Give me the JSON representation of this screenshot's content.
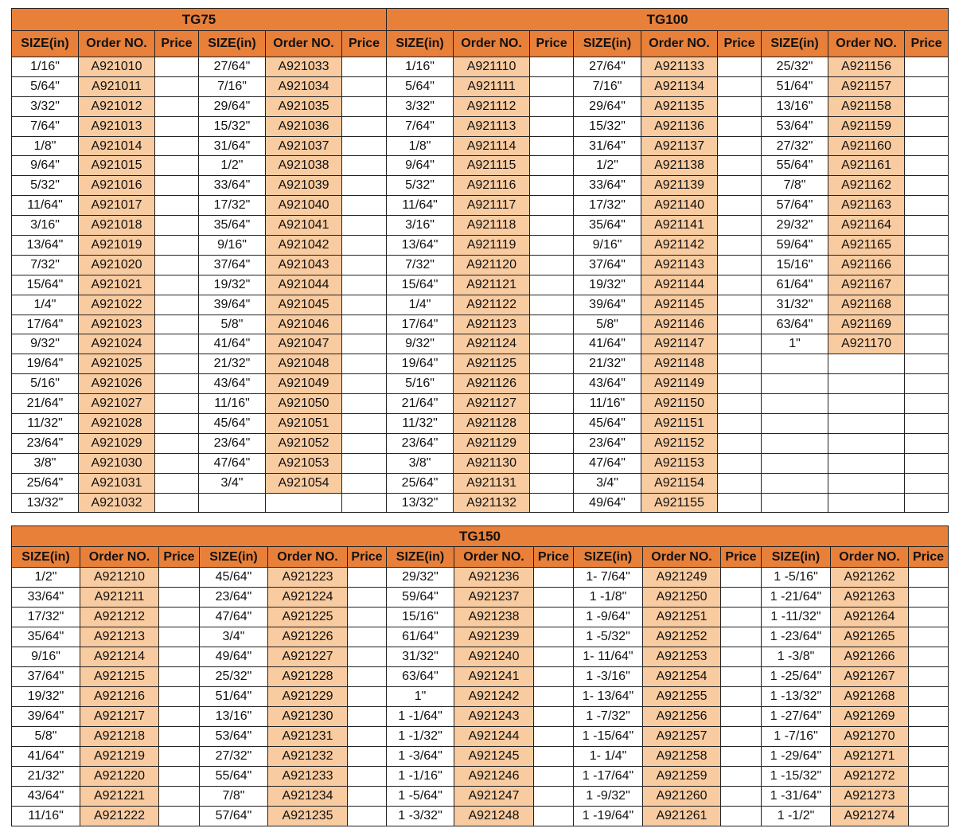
{
  "headers": {
    "size": "SIZE(in)",
    "order": "Order NO.",
    "price": "Price"
  },
  "colors": {
    "header": "#E8803A",
    "order_cell": "#F8CBA0"
  },
  "tg75": {
    "title": "TG75",
    "groups": [
      {
        "rows": [
          [
            "1/16\"",
            "A921010"
          ],
          [
            "5/64\"",
            "A921011"
          ],
          [
            "3/32\"",
            "A921012"
          ],
          [
            "7/64\"",
            "A921013"
          ],
          [
            "1/8\"",
            "A921014"
          ],
          [
            "9/64\"",
            "A921015"
          ],
          [
            "5/32\"",
            "A921016"
          ],
          [
            "11/64\"",
            "A921017"
          ],
          [
            "3/16\"",
            "A921018"
          ],
          [
            "13/64\"",
            "A921019"
          ],
          [
            "7/32\"",
            "A921020"
          ],
          [
            "15/64\"",
            "A921021"
          ],
          [
            "1/4\"",
            "A921022"
          ],
          [
            "17/64\"",
            "A921023"
          ],
          [
            "9/32\"",
            "A921024"
          ],
          [
            "19/64\"",
            "A921025"
          ],
          [
            "5/16\"",
            "A921026"
          ],
          [
            "21/64\"",
            "A921027"
          ],
          [
            "11/32\"",
            "A921028"
          ],
          [
            "23/64\"",
            "A921029"
          ],
          [
            "3/8\"",
            "A921030"
          ],
          [
            "25/64\"",
            "A921031"
          ],
          [
            "13/32\"",
            "A921032"
          ]
        ]
      },
      {
        "rows": [
          [
            "27/64\"",
            "A921033"
          ],
          [
            "7/16\"",
            "A921034"
          ],
          [
            "29/64\"",
            "A921035"
          ],
          [
            "15/32\"",
            "A921036"
          ],
          [
            "31/64\"",
            "A921037"
          ],
          [
            "1/2\"",
            "A921038"
          ],
          [
            "33/64\"",
            "A921039"
          ],
          [
            "17/32\"",
            "A921040"
          ],
          [
            "35/64\"",
            "A921041"
          ],
          [
            "9/16\"",
            "A921042"
          ],
          [
            "37/64\"",
            "A921043"
          ],
          [
            "19/32\"",
            "A921044"
          ],
          [
            "39/64\"",
            "A921045"
          ],
          [
            "5/8\"",
            "A921046"
          ],
          [
            "41/64\"",
            "A921047"
          ],
          [
            "21/32\"",
            "A921048"
          ],
          [
            "43/64\"",
            "A921049"
          ],
          [
            "11/16\"",
            "A921050"
          ],
          [
            "45/64\"",
            "A921051"
          ],
          [
            "23/64\"",
            "A921052"
          ],
          [
            "47/64\"",
            "A921053"
          ],
          [
            "3/4\"",
            "A921054"
          ]
        ]
      }
    ]
  },
  "tg100": {
    "title": "TG100",
    "groups": [
      {
        "rows": [
          [
            "1/16\"",
            "A921110"
          ],
          [
            "5/64\"",
            "A921111"
          ],
          [
            "3/32\"",
            "A921112"
          ],
          [
            "7/64\"",
            "A921113"
          ],
          [
            "1/8\"",
            "A921114"
          ],
          [
            "9/64\"",
            "A921115"
          ],
          [
            "5/32\"",
            "A921116"
          ],
          [
            "11/64\"",
            "A921117"
          ],
          [
            "3/16\"",
            "A921118"
          ],
          [
            "13/64\"",
            "A921119"
          ],
          [
            "7/32\"",
            "A921120"
          ],
          [
            "15/64\"",
            "A921121"
          ],
          [
            "1/4\"",
            "A921122"
          ],
          [
            "17/64\"",
            "A921123"
          ],
          [
            "9/32\"",
            "A921124"
          ],
          [
            "19/64\"",
            "A921125"
          ],
          [
            "5/16\"",
            "A921126"
          ],
          [
            "21/64\"",
            "A921127"
          ],
          [
            "11/32\"",
            "A921128"
          ],
          [
            "23/64\"",
            "A921129"
          ],
          [
            "3/8\"",
            "A921130"
          ],
          [
            "25/64\"",
            "A921131"
          ],
          [
            "13/32\"",
            "A921132"
          ]
        ]
      },
      {
        "rows": [
          [
            "27/64\"",
            "A921133"
          ],
          [
            "7/16\"",
            "A921134"
          ],
          [
            "29/64\"",
            "A921135"
          ],
          [
            "15/32\"",
            "A921136"
          ],
          [
            "31/64\"",
            "A921137"
          ],
          [
            "1/2\"",
            "A921138"
          ],
          [
            "33/64\"",
            "A921139"
          ],
          [
            "17/32\"",
            "A921140"
          ],
          [
            "35/64\"",
            "A921141"
          ],
          [
            "9/16\"",
            "A921142"
          ],
          [
            "37/64\"",
            "A921143"
          ],
          [
            "19/32\"",
            "A921144"
          ],
          [
            "39/64\"",
            "A921145"
          ],
          [
            "5/8\"",
            "A921146"
          ],
          [
            "41/64\"",
            "A921147"
          ],
          [
            "21/32\"",
            "A921148"
          ],
          [
            "43/64\"",
            "A921149"
          ],
          [
            "11/16\"",
            "A921150"
          ],
          [
            "45/64\"",
            "A921151"
          ],
          [
            "23/64\"",
            "A921152"
          ],
          [
            "47/64\"",
            "A921153"
          ],
          [
            "3/4\"",
            "A921154"
          ],
          [
            "49/64\"",
            "A921155"
          ]
        ]
      },
      {
        "rows": [
          [
            "25/32\"",
            "A921156"
          ],
          [
            "51/64\"",
            "A921157"
          ],
          [
            "13/16\"",
            "A921158"
          ],
          [
            "53/64\"",
            "A921159"
          ],
          [
            "27/32\"",
            "A921160"
          ],
          [
            "55/64\"",
            "A921161"
          ],
          [
            "7/8\"",
            "A921162"
          ],
          [
            "57/64\"",
            "A921163"
          ],
          [
            "29/32\"",
            "A921164"
          ],
          [
            "59/64\"",
            "A921165"
          ],
          [
            "15/16\"",
            "A921166"
          ],
          [
            "61/64\"",
            "A921167"
          ],
          [
            "31/32\"",
            "A921168"
          ],
          [
            "63/64\"",
            "A921169"
          ],
          [
            "1\"",
            "A921170"
          ]
        ]
      }
    ]
  },
  "tg150": {
    "title": "TG150",
    "groups": [
      {
        "rows": [
          [
            "1/2\"",
            "A921210"
          ],
          [
            "33/64\"",
            "A921211"
          ],
          [
            "17/32\"",
            "A921212"
          ],
          [
            "35/64\"",
            "A921213"
          ],
          [
            "9/16\"",
            "A921214"
          ],
          [
            "37/64\"",
            "A921215"
          ],
          [
            "19/32\"",
            "A921216"
          ],
          [
            "39/64\"",
            "A921217"
          ],
          [
            "5/8\"",
            "A921218"
          ],
          [
            "41/64\"",
            "A921219"
          ],
          [
            "21/32\"",
            "A921220"
          ],
          [
            "43/64\"",
            "A921221"
          ],
          [
            "11/16\"",
            "A921222"
          ]
        ]
      },
      {
        "rows": [
          [
            "45/64\"",
            "A921223"
          ],
          [
            "23/64\"",
            "A921224"
          ],
          [
            "47/64\"",
            "A921225"
          ],
          [
            "3/4\"",
            "A921226"
          ],
          [
            "49/64\"",
            "A921227"
          ],
          [
            "25/32\"",
            "A921228"
          ],
          [
            "51/64\"",
            "A921229"
          ],
          [
            "13/16\"",
            "A921230"
          ],
          [
            "53/64\"",
            "A921231"
          ],
          [
            "27/32\"",
            "A921232"
          ],
          [
            "55/64\"",
            "A921233"
          ],
          [
            "7/8\"",
            "A921234"
          ],
          [
            "57/64\"",
            "A921235"
          ]
        ]
      },
      {
        "rows": [
          [
            "29/32\"",
            "A921236"
          ],
          [
            "59/64\"",
            "A921237"
          ],
          [
            "15/16\"",
            "A921238"
          ],
          [
            "61/64\"",
            "A921239"
          ],
          [
            "31/32\"",
            "A921240"
          ],
          [
            "63/64\"",
            "A921241"
          ],
          [
            "1\"",
            "A921242"
          ],
          [
            "1 -1/64\"",
            "A921243"
          ],
          [
            "1 -1/32\"",
            "A921244"
          ],
          [
            "1 -3/64\"",
            "A921245"
          ],
          [
            "1 -1/16\"",
            "A921246"
          ],
          [
            "1 -5/64\"",
            "A921247"
          ],
          [
            "1 -3/32\"",
            "A921248"
          ]
        ]
      },
      {
        "rows": [
          [
            "1- 7/64\"",
            "A921249"
          ],
          [
            "1 -1/8\"",
            "A921250"
          ],
          [
            "1 -9/64\"",
            "A921251"
          ],
          [
            "1 -5/32\"",
            "A921252"
          ],
          [
            "1- 11/64\"",
            "A921253"
          ],
          [
            "1 -3/16\"",
            "A921254"
          ],
          [
            "1- 13/64\"",
            "A921255"
          ],
          [
            "1 -7/32\"",
            "A921256"
          ],
          [
            "1 -15/64\"",
            "A921257"
          ],
          [
            "1- 1/4\"",
            "A921258"
          ],
          [
            "1 -17/64\"",
            "A921259"
          ],
          [
            "1 -9/32\"",
            "A921260"
          ],
          [
            "1 -19/64\"",
            "A921261"
          ]
        ]
      },
      {
        "rows": [
          [
            "1 -5/16\"",
            "A921262"
          ],
          [
            "1 -21/64\"",
            "A921263"
          ],
          [
            "1 -11/32\"",
            "A921264"
          ],
          [
            "1 -23/64\"",
            "A921265"
          ],
          [
            "1 -3/8\"",
            "A921266"
          ],
          [
            "1 -25/64\"",
            "A921267"
          ],
          [
            "1 -13/32\"",
            "A921268"
          ],
          [
            "1 -27/64\"",
            "A921269"
          ],
          [
            "1 -7/16\"",
            "A921270"
          ],
          [
            "1 -29/64\"",
            "A921271"
          ],
          [
            "1 -15/32\"",
            "A921272"
          ],
          [
            "1 -31/64\"",
            "A921273"
          ],
          [
            "1 -1/2\"",
            "A921274"
          ]
        ]
      }
    ]
  }
}
